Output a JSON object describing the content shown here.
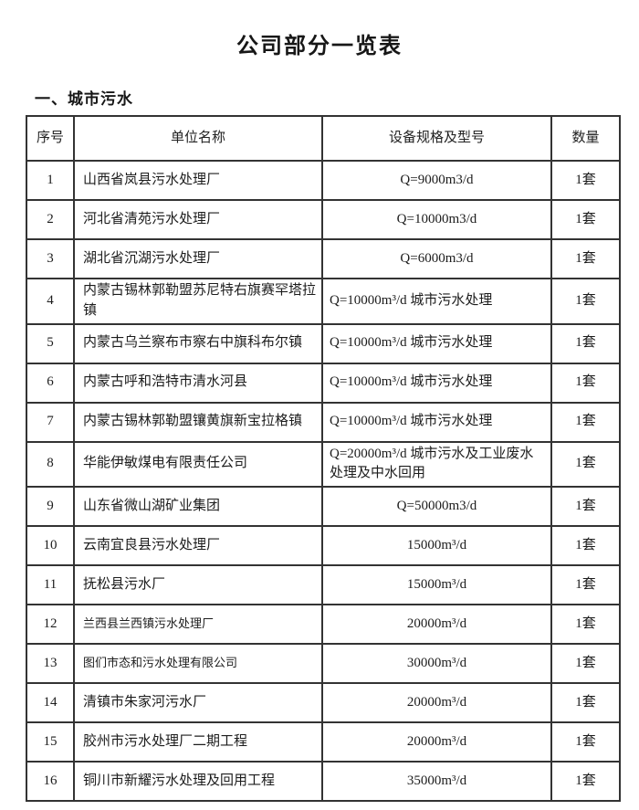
{
  "page": {
    "title": "公司部分一览表",
    "section_heading": "一、城市污水"
  },
  "table": {
    "headers": [
      "序号",
      "单位名称",
      "设备规格及型号",
      "数量"
    ],
    "rows": [
      {
        "seq": "1",
        "name": "山西省岚县污水处理厂",
        "spec": "Q=9000m3/d",
        "qty": "1套",
        "spec_align": "center"
      },
      {
        "seq": "2",
        "name": "河北省清苑污水处理厂",
        "spec": "Q=10000m3/d",
        "qty": "1套",
        "spec_align": "center"
      },
      {
        "seq": "3",
        "name": "湖北省沉湖污水处理厂",
        "spec": "Q=6000m3/d",
        "qty": "1套",
        "spec_align": "center"
      },
      {
        "seq": "4",
        "name": "内蒙古锡林郭勒盟苏尼特右旗赛罕塔拉镇",
        "spec": "Q=10000m³/d 城市污水处理",
        "qty": "1套",
        "spec_align": "left"
      },
      {
        "seq": "5",
        "name": "内蒙古乌兰察布市察右中旗科布尔镇",
        "spec": "Q=10000m³/d 城市污水处理",
        "qty": "1套",
        "spec_align": "left"
      },
      {
        "seq": "6",
        "name": "内蒙古呼和浩特市清水河县",
        "spec": "Q=10000m³/d 城市污水处理",
        "qty": "1套",
        "spec_align": "left"
      },
      {
        "seq": "7",
        "name": "内蒙古锡林郭勒盟镶黄旗新宝拉格镇",
        "spec": "Q=10000m³/d 城市污水处理",
        "qty": "1套",
        "spec_align": "left"
      },
      {
        "seq": "8",
        "name": "华能伊敏煤电有限责任公司",
        "spec": "Q=20000m³/d 城市污水及工业废水处理及中水回用",
        "qty": "1套",
        "spec_align": "left"
      },
      {
        "seq": "9",
        "name": "山东省微山湖矿业集团",
        "spec": "Q=50000m3/d",
        "qty": "1套",
        "spec_align": "center"
      },
      {
        "seq": "10",
        "name": "云南宜良县污水处理厂",
        "spec": "15000m³/d",
        "qty": "1套",
        "spec_align": "center"
      },
      {
        "seq": "11",
        "name": "抚松县污水厂",
        "spec": "15000m³/d",
        "qty": "1套",
        "spec_align": "center"
      },
      {
        "seq": "12",
        "name": "兰西县兰西镇污水处理厂",
        "spec": "20000m³/d",
        "qty": "1套",
        "spec_align": "center",
        "name_small": true
      },
      {
        "seq": "13",
        "name": "图们市态和污水处理有限公司",
        "spec": "30000m³/d",
        "qty": "1套",
        "spec_align": "center",
        "name_small": true
      },
      {
        "seq": "14",
        "name": "清镇市朱家河污水厂",
        "spec": "20000m³/d",
        "qty": "1套",
        "spec_align": "center"
      },
      {
        "seq": "15",
        "name": "胶州市污水处理厂二期工程",
        "spec": "20000m³/d",
        "qty": "1套",
        "spec_align": "center"
      },
      {
        "seq": "16",
        "name": "铜川市新耀污水处理及回用工程",
        "spec": "35000m³/d",
        "qty": "1套",
        "spec_align": "center"
      }
    ]
  }
}
